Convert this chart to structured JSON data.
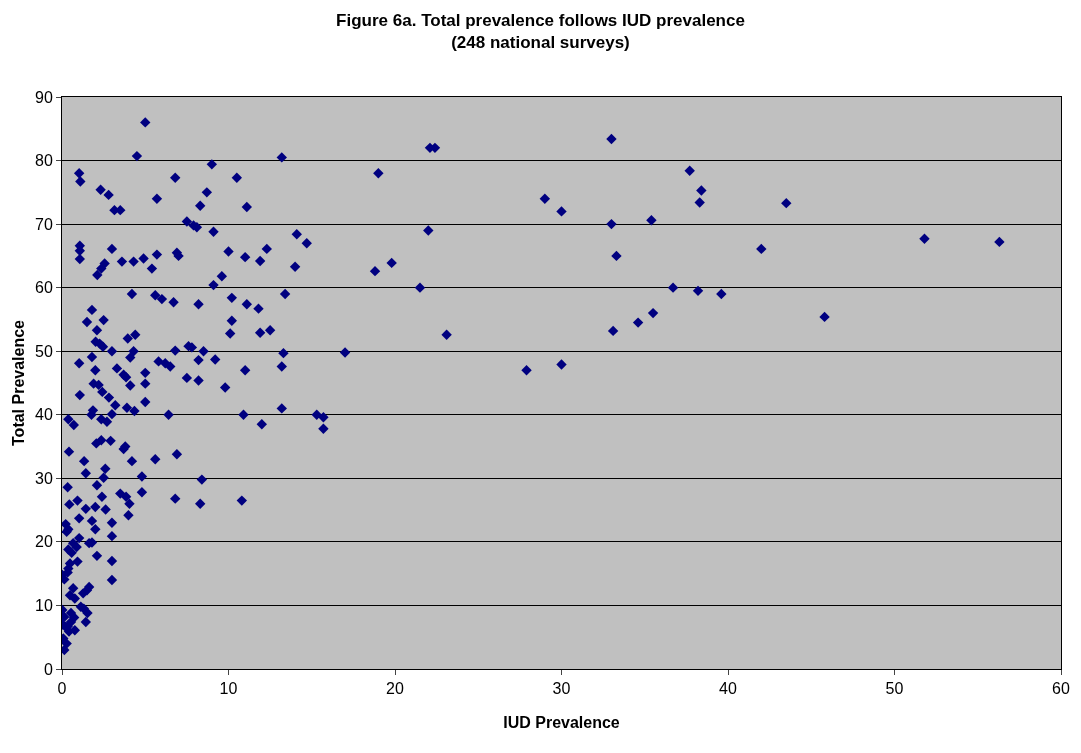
{
  "chart_data": {
    "type": "scatter",
    "title": "Figure 6a. Total prevalence follows IUD prevalence\n(248 national surveys)",
    "xlabel": "IUD Prevalence",
    "ylabel": "Total Prevalence",
    "xlim": [
      0,
      60
    ],
    "xticks": [
      0,
      10,
      20,
      30,
      40,
      50,
      60
    ],
    "ylim": [
      0,
      90
    ],
    "yticks": [
      0,
      10,
      20,
      30,
      40,
      50,
      60,
      70,
      80,
      90
    ],
    "grid": "y",
    "marker": "diamond",
    "series": [
      {
        "color": "#000080",
        "x": [
          15.3,
          15.7,
          15.7,
          17,
          18.8,
          19,
          19.8,
          21.5,
          22,
          22.1,
          22.4,
          23.1,
          27.9,
          29,
          30,
          30,
          33,
          33,
          33.1,
          33.3,
          34.6,
          35.4,
          35.5,
          36.7,
          37.7,
          38.2,
          38.3,
          38.4,
          39.6,
          42,
          43.5,
          45.8,
          51.8,
          56.3,
          5,
          4.5,
          13.2,
          9,
          6.8,
          10.5,
          5.7,
          8.7,
          8.3,
          11.1,
          7.5,
          7.9,
          8.1,
          9.1,
          14.1,
          14.7,
          12.3,
          10,
          6.9,
          7,
          5.7,
          11,
          11.9,
          14,
          5.4,
          9.6,
          9.1,
          5.6,
          6,
          6.7,
          8.2,
          11.1,
          10.2,
          11.8,
          13.4,
          10.2,
          10.1,
          11.9,
          12.5,
          13.3,
          13.2,
          9.2,
          8.2,
          8.5,
          7.6,
          7.8,
          6.8,
          5.8,
          6.2,
          6.5,
          11,
          7.5,
          8.2,
          9.8,
          5,
          5,
          5,
          6.4,
          10.9,
          12,
          13.2,
          6.9,
          5.6,
          8.4,
          6.8,
          8.3,
          10.8,
          1.03,
          1.1,
          2.32,
          2.8,
          3.15,
          3.5,
          1.07,
          1.07,
          1.07,
          3,
          2.56,
          2.36,
          2.12,
          3.6,
          4.3,
          4.9,
          4.2,
          1.8,
          1.5,
          2.5,
          2.1,
          2.02,
          2.26,
          2.46,
          3,
          3.95,
          4.4,
          4.3,
          4.1,
          1.8,
          1.03,
          2,
          3.3,
          3.7,
          3.85,
          1.9,
          2.2,
          4.1,
          2.42,
          2.82,
          1.07,
          3.2,
          1.86,
          1.77,
          3,
          3.9,
          4.35,
          0.38,
          0.71,
          2.36,
          2.7,
          2.06,
          2.36,
          2.92,
          0.42,
          3.7,
          3.8,
          1.33,
          4.2,
          2.6,
          2.5,
          1.43,
          4.8,
          0.34,
          2.1,
          2.4,
          3.5,
          3.85,
          4.05,
          4.8,
          3.99,
          0.44,
          0.93,
          1.43,
          2,
          2.62,
          1.03,
          1.8,
          2,
          3,
          3,
          0.22,
          0.28,
          0.38,
          1.03,
          0.67,
          0.38,
          0.58,
          0.88,
          1.63,
          1.8,
          2.1,
          3,
          0.93,
          0.48,
          0.38,
          0.02,
          0.14,
          0.34,
          3,
          1.63,
          1.5,
          1.27,
          0.67,
          0.48,
          0.77,
          1.13,
          1.31,
          1.53,
          1.43,
          0.02,
          0.14,
          0.54,
          0.73,
          0.54,
          0.34,
          0.77,
          0.18,
          0.42,
          0.08,
          0.28,
          0.14,
          0.02
        ],
        "values": [
          40,
          39.6,
          37.8,
          49.8,
          62.6,
          78,
          63.9,
          60,
          69,
          82,
          82,
          52.6,
          47,
          74,
          72,
          47.9,
          83.4,
          70,
          53.2,
          65,
          54.5,
          70.6,
          56,
          60,
          78.4,
          59.5,
          73.4,
          75.3,
          59,
          66.1,
          73.3,
          55.4,
          67.7,
          67.2,
          86,
          80.7,
          80.5,
          79.4,
          77.3,
          77.3,
          74,
          75,
          72.9,
          72.7,
          70.4,
          69.8,
          69.5,
          68.8,
          68.4,
          67,
          66.1,
          65.7,
          65.5,
          65,
          65.2,
          64.8,
          64.2,
          63.3,
          63,
          61.8,
          60.4,
          58.8,
          58.2,
          57.7,
          57.4,
          57.4,
          58.4,
          56.7,
          59,
          54.8,
          52.8,
          52.9,
          53.3,
          49.7,
          47.6,
          48.7,
          48.6,
          50,
          50.8,
          50.6,
          50.1,
          48.4,
          48.1,
          47.6,
          47,
          45.8,
          45.4,
          44.3,
          46.6,
          44.9,
          42,
          40,
          40,
          38.5,
          41,
          33.8,
          33,
          29.8,
          26.8,
          26,
          26.5,
          78,
          76.7,
          75.4,
          74.6,
          72.2,
          72.2,
          66.6,
          65.8,
          64.5,
          66.1,
          63.8,
          63,
          62,
          64.1,
          64.1,
          64.6,
          59,
          56.5,
          54.6,
          54.9,
          53.3,
          51.5,
          51.2,
          50.7,
          50,
          52,
          52.6,
          50,
          49,
          49.1,
          48.1,
          47,
          47.3,
          46.3,
          45.9,
          44.9,
          44.7,
          44.6,
          43.6,
          42.7,
          43.1,
          41.5,
          40.7,
          40,
          40.1,
          41.1,
          40.6,
          39.3,
          38.4,
          39.3,
          38.9,
          35.5,
          36,
          35.9,
          34.2,
          34.6,
          35,
          32.7,
          32.7,
          31.5,
          30.1,
          30.8,
          30.3,
          28.6,
          28.9,
          27.1,
          27.6,
          27.1,
          26,
          27.8,
          24.2,
          25.9,
          26.5,
          25.2,
          25.5,
          25.1,
          23.7,
          23.3,
          22,
          23,
          20.9,
          22.8,
          21.6,
          22,
          20.6,
          19.8,
          18.8,
          18.3,
          19.2,
          19.8,
          19.9,
          17.8,
          17,
          16.9,
          16.6,
          15.8,
          14.8,
          14.1,
          15.2,
          14,
          12.9,
          12.4,
          11.9,
          12.7,
          11.6,
          11.1,
          9.8,
          9.5,
          8.8,
          7.4,
          9.3,
          8.2,
          8.8,
          8.1,
          7.4,
          6.7,
          6.1,
          6.7,
          5.9,
          4.8,
          4,
          3,
          7
        ]
      }
    ]
  }
}
